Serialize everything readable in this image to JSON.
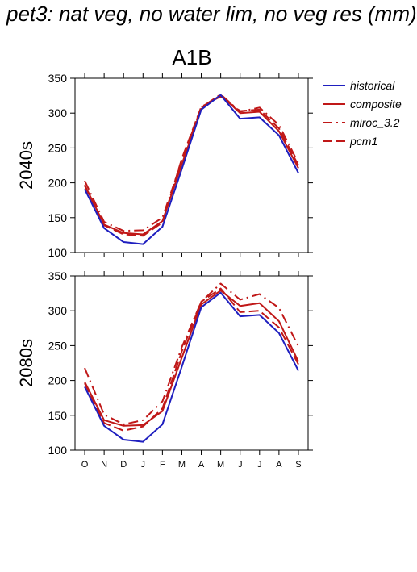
{
  "page_title": "pet3: nat veg, no water lim, no veg res (mm)",
  "scenario_title": "A1B",
  "legend": [
    {
      "name": "historical",
      "color": "#1f1fbf",
      "dash": "solid"
    },
    {
      "name": "composite",
      "color": "#c01818",
      "dash": "solid"
    },
    {
      "name": "miroc_3.2",
      "color": "#c01818",
      "dash": "dashdot"
    },
    {
      "name": "pcm1",
      "color": "#c01818",
      "dash": "dashed"
    }
  ],
  "chart_data": [
    {
      "type": "line",
      "panel_label": "2040s",
      "categories": [
        "O",
        "N",
        "D",
        "J",
        "F",
        "M",
        "A",
        "M",
        "J",
        "J",
        "A",
        "S"
      ],
      "ylim": [
        100,
        350
      ],
      "yticks": [
        100,
        150,
        200,
        250,
        300,
        350
      ],
      "series": [
        {
          "name": "historical",
          "values": [
            191,
            135,
            115,
            112,
            137,
            220,
            305,
            326,
            292,
            294,
            268,
            214
          ]
        },
        {
          "name": "composite",
          "values": [
            197,
            140,
            128,
            126,
            145,
            227,
            306,
            326,
            300,
            302,
            274,
            221
          ]
        },
        {
          "name": "miroc_3.2",
          "values": [
            203,
            144,
            131,
            132,
            150,
            232,
            308,
            327,
            302,
            308,
            283,
            228
          ]
        },
        {
          "name": "pcm1",
          "values": [
            196,
            139,
            126,
            124,
            143,
            235,
            309,
            324,
            303,
            305,
            278,
            225
          ]
        }
      ]
    },
    {
      "type": "line",
      "panel_label": "2080s",
      "categories": [
        "O",
        "N",
        "D",
        "J",
        "F",
        "M",
        "A",
        "M",
        "J",
        "J",
        "A",
        "S"
      ],
      "ylim": [
        100,
        350
      ],
      "yticks": [
        100,
        150,
        200,
        250,
        300,
        350
      ],
      "series": [
        {
          "name": "historical",
          "values": [
            191,
            135,
            115,
            112,
            137,
            220,
            305,
            326,
            292,
            294,
            268,
            214
          ]
        },
        {
          "name": "composite",
          "values": [
            198,
            143,
            135,
            136,
            156,
            233,
            309,
            329,
            307,
            311,
            285,
            227
          ]
        },
        {
          "name": "miroc_3.2",
          "values": [
            218,
            151,
            137,
            143,
            170,
            248,
            313,
            339,
            316,
            324,
            304,
            249
          ]
        },
        {
          "name": "pcm1",
          "values": [
            196,
            139,
            128,
            134,
            160,
            242,
            313,
            332,
            298,
            300,
            276,
            223
          ]
        }
      ]
    }
  ]
}
